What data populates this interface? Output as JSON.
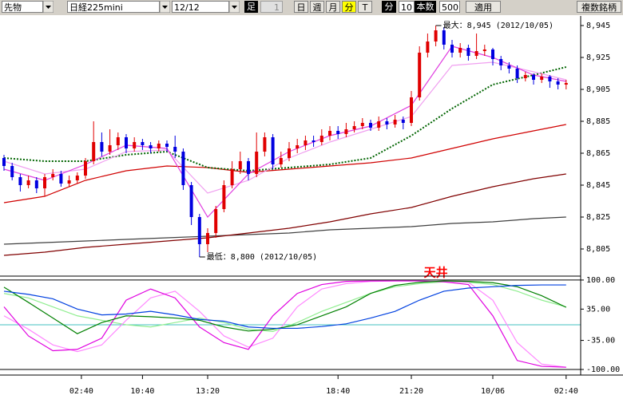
{
  "toolbar": {
    "symbol_type": "先物",
    "symbol": "日経225mini",
    "contract": "12/12",
    "bar_label": "足",
    "bar_count_input": "1",
    "periods": [
      "日",
      "週",
      "月",
      "分",
      "T"
    ],
    "active_period": 3,
    "unit": "分",
    "interval": "10",
    "count_label": "本数",
    "count": "500",
    "apply": "適用",
    "multi": "複数銘柄"
  },
  "chart_data": [
    {
      "type": "candlestick",
      "open": [
        8862,
        8857,
        8850,
        8845,
        8848,
        8843,
        8850,
        8852,
        8846,
        8848,
        8851,
        8860,
        8872,
        8866,
        8870,
        8875,
        8868,
        8872,
        8870,
        8868,
        8871,
        8869,
        8866,
        8845,
        8825,
        8808,
        8815,
        8830,
        8845,
        8855,
        8860,
        8852,
        8866,
        8875,
        8858,
        8862,
        8868,
        8870,
        8873,
        8872,
        8876,
        8879,
        8877,
        8880,
        8882,
        8884,
        8881,
        8885,
        8883,
        8886,
        8884,
        8900,
        8928,
        8935,
        8942,
        8933,
        8928,
        8931,
        8926,
        8929,
        8930,
        8924,
        8920,
        8918,
        8912,
        8914,
        8911,
        8913,
        8910,
        8908
      ],
      "high": [
        8864,
        8859,
        8852,
        8851,
        8850,
        8852,
        8855,
        8854,
        8851,
        8853,
        8862,
        8885,
        8878,
        8880,
        8878,
        8877,
        8875,
        8874,
        8872,
        8873,
        8873,
        8876,
        8868,
        8847,
        8827,
        8818,
        8832,
        8848,
        8860,
        8866,
        8862,
        8878,
        8878,
        8877,
        8866,
        8872,
        8874,
        8876,
        8876,
        8880,
        8882,
        8882,
        8884,
        8885,
        8887,
        8886,
        8888,
        8887,
        8889,
        8888,
        8904,
        8932,
        8940,
        8945,
        8944,
        8936,
        8934,
        8933,
        8940,
        8933,
        8931,
        8926,
        8922,
        8920,
        8916,
        8915,
        8915,
        8914,
        8912,
        8911
      ],
      "low": [
        8854,
        8848,
        8841,
        8843,
        8840,
        8838,
        8848,
        8844,
        8844,
        8846,
        8849,
        8858,
        8863,
        8864,
        8867,
        8865,
        8866,
        8867,
        8865,
        8866,
        8866,
        8862,
        8842,
        8820,
        8800,
        8803,
        8812,
        8828,
        8843,
        8852,
        8848,
        8850,
        8863,
        8855,
        8856,
        8860,
        8865,
        8867,
        8869,
        8870,
        8873,
        8874,
        8875,
        8878,
        8880,
        8879,
        8879,
        8880,
        8881,
        8880,
        8882,
        8898,
        8925,
        8932,
        8930,
        8925,
        8925,
        8923,
        8924,
        8926,
        8920,
        8917,
        8915,
        8909,
        8910,
        8908,
        8909,
        8906,
        8905,
        8905
      ],
      "close": [
        8857,
        8850,
        8845,
        8848,
        8843,
        8850,
        8852,
        8846,
        8848,
        8851,
        8860,
        8872,
        8866,
        8870,
        8875,
        8868,
        8872,
        8870,
        8868,
        8871,
        8869,
        8866,
        8845,
        8825,
        8808,
        8815,
        8830,
        8845,
        8855,
        8860,
        8852,
        8866,
        8875,
        8858,
        8862,
        8868,
        8870,
        8873,
        8872,
        8876,
        8879,
        8877,
        8880,
        8882,
        8884,
        8881,
        8885,
        8883,
        8886,
        8884,
        8900,
        8928,
        8935,
        8942,
        8933,
        8928,
        8931,
        8926,
        8929,
        8930,
        8924,
        8920,
        8918,
        8912,
        8914,
        8911,
        8913,
        8910,
        8908,
        8909
      ],
      "up_color": "#e00000",
      "down_color": "#0000e0",
      "xlim": [
        0,
        70
      ],
      "ylim": [
        8788.5,
        8951
      ],
      "yticks": [
        {
          "value": 8805,
          "label": "8,805"
        },
        {
          "value": 8825,
          "label": "8,825"
        },
        {
          "value": 8845,
          "label": "8,845"
        },
        {
          "value": 8865,
          "label": "8,865"
        },
        {
          "value": 8885,
          "label": "8,885"
        },
        {
          "value": 8905,
          "label": "8,905"
        },
        {
          "value": 8925,
          "label": "8,925"
        },
        {
          "value": 8945,
          "label": "8,945"
        }
      ],
      "ma_x": [
        0,
        5,
        10,
        15,
        20,
        25,
        30,
        35,
        40,
        45,
        50,
        55,
        60,
        65,
        69
      ],
      "lines": [
        {
          "color": "#404040",
          "values": [
            8808,
            8809,
            8810,
            8811,
            8812,
            8813,
            8814,
            8815,
            8817,
            8818,
            8819,
            8821,
            8822,
            8824,
            8825
          ]
        },
        {
          "color": "#800000",
          "values": [
            8801,
            8803,
            8806,
            8808,
            8810,
            8812,
            8815,
            8818,
            8822,
            8827,
            8831,
            8838,
            8844,
            8849,
            8852
          ]
        },
        {
          "color": "#d00000",
          "values": [
            8834,
            8838,
            8848,
            8854,
            8857,
            8856,
            8853,
            8855,
            8857,
            8859,
            8862,
            8868,
            8874,
            8879,
            8883
          ]
        },
        {
          "color": "#006400",
          "dashed": true,
          "values": [
            8862,
            8860,
            8860,
            8864,
            8866,
            8856,
            8854,
            8856,
            8858,
            8862,
            8876,
            8893,
            8908,
            8914,
            8919
          ]
        },
        {
          "color": "#f0a0f0",
          "values": [
            8860,
            8852,
            8855,
            8866,
            8867,
            8840,
            8848,
            8862,
            8872,
            8880,
            8888,
            8920,
            8922,
            8916,
            8911
          ]
        },
        {
          "color": "#e040e0",
          "values": [
            8855,
            8848,
            8858,
            8870,
            8868,
            8825,
            8852,
            8866,
            8876,
            8882,
            8895,
            8932,
            8925,
            8914,
            8910
          ]
        }
      ],
      "annotations": [
        {
          "text": "最大：8,945 (2012/10/05)",
          "x": 53,
          "y": 8945
        },
        {
          "text": "最低：8,800 (2012/10/05)",
          "x": 24,
          "y": 8800
        }
      ]
    },
    {
      "type": "line",
      "x": [
        0,
        3,
        6,
        9,
        12,
        15,
        18,
        21,
        24,
        27,
        30,
        33,
        36,
        39,
        42,
        45,
        48,
        51,
        54,
        57,
        60,
        63,
        66,
        69
      ],
      "series": [
        {
          "color": "#90ee90",
          "values": [
            70,
            60,
            40,
            20,
            10,
            0,
            -5,
            5,
            15,
            5,
            -10,
            -15,
            5,
            30,
            50,
            70,
            85,
            92,
            96,
            95,
            90,
            75,
            55,
            40
          ]
        },
        {
          "color": "#ff88ff",
          "values": [
            20,
            -10,
            -45,
            -60,
            -45,
            10,
            60,
            75,
            30,
            -25,
            -50,
            -30,
            40,
            80,
            92,
            97,
            98,
            98,
            97,
            95,
            55,
            -40,
            -88,
            -95
          ]
        },
        {
          "color": "#e000e0",
          "values": [
            40,
            -25,
            -58,
            -55,
            -30,
            55,
            80,
            60,
            -5,
            -40,
            -55,
            20,
            70,
            90,
            97,
            98,
            98,
            98,
            96,
            90,
            20,
            -80,
            -93,
            -95
          ]
        },
        {
          "color": "#008000",
          "values": [
            84,
            50,
            15,
            -20,
            5,
            20,
            18,
            15,
            10,
            -5,
            -14,
            -10,
            0,
            20,
            40,
            70,
            88,
            95,
            98,
            97,
            94,
            85,
            65,
            39
          ]
        },
        {
          "color": "#0040e0",
          "values": [
            75,
            68,
            58,
            35,
            22,
            24,
            30,
            22,
            12,
            8,
            -5,
            -8,
            -8,
            -4,
            2,
            15,
            30,
            55,
            75,
            82,
            85,
            88,
            89,
            89
          ]
        }
      ],
      "xlim": [
        0,
        70
      ],
      "ylim": [
        -112.5,
        107
      ],
      "yticks": [
        {
          "value": 100,
          "label": "100.00"
        },
        {
          "value": 35,
          "label": "35.00"
        },
        {
          "value": -35,
          "label": "-35.00"
        },
        {
          "value": -100,
          "label": "-100.00"
        }
      ],
      "hlines": [
        {
          "value": 100,
          "color": "#000000"
        },
        {
          "value": 0,
          "color": "#40c0c0"
        },
        {
          "value": -100,
          "color": "#000000"
        }
      ],
      "xticks": [
        {
          "value": 9.5,
          "label": "02:40"
        },
        {
          "value": 17,
          "label": "10:40"
        },
        {
          "value": 25,
          "label": "13:20"
        },
        {
          "value": 41,
          "label": "18:40"
        },
        {
          "value": 50,
          "label": "21:20"
        },
        {
          "value": 60,
          "label": "10/06"
        },
        {
          "value": 69,
          "label": "02:40"
        }
      ],
      "annotations": [
        {
          "text": "天井",
          "x": 53,
          "y": 100
        }
      ]
    }
  ]
}
